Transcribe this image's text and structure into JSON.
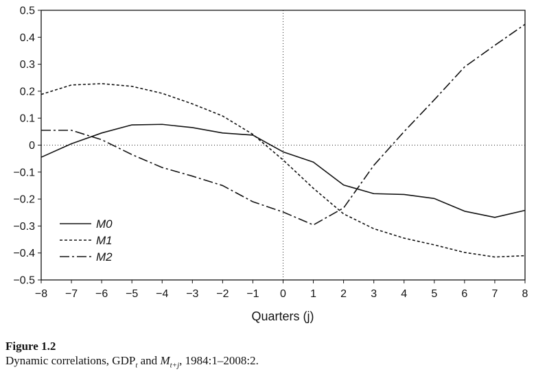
{
  "chart_data": {
    "type": "line",
    "xlabel": "Quarters (j)",
    "ylabel": "",
    "xlim": [
      -8,
      8
    ],
    "ylim": [
      -0.5,
      0.5
    ],
    "x": [
      -8,
      -7,
      -6,
      -5,
      -4,
      -3,
      -2,
      -1,
      0,
      1,
      2,
      3,
      4,
      5,
      6,
      7,
      8
    ],
    "x_tick_labels": [
      "−8",
      "−7",
      "−6",
      "−5",
      "−4",
      "−3",
      "−2",
      "−1",
      "0",
      "1",
      "2",
      "3",
      "4",
      "5",
      "6",
      "7",
      "8"
    ],
    "y_ticks": [
      -0.5,
      -0.4,
      -0.3,
      -0.2,
      -0.1,
      0,
      0.1,
      0.2,
      0.3,
      0.4,
      0.5
    ],
    "y_tick_labels": [
      "−0.5",
      "−0.4",
      "−0.3",
      "−0.2",
      "−0.1",
      "0",
      "0.1",
      "0.2",
      "0.3",
      "0.4",
      "0.5"
    ],
    "reference_lines": {
      "x": 0,
      "y": 0,
      "style": "dotted"
    },
    "legend_position": "lower-left",
    "series": [
      {
        "name": "M0",
        "style": "solid",
        "values": [
          -0.045,
          0.005,
          0.045,
          0.075,
          0.077,
          0.065,
          0.045,
          0.037,
          -0.025,
          -0.063,
          -0.148,
          -0.18,
          -0.183,
          -0.198,
          -0.245,
          -0.268,
          -0.242
        ]
      },
      {
        "name": "M1",
        "style": "dashed",
        "values": [
          0.188,
          0.223,
          0.228,
          0.218,
          0.192,
          0.153,
          0.108,
          0.04,
          -0.055,
          -0.16,
          -0.255,
          -0.31,
          -0.345,
          -0.37,
          -0.398,
          -0.415,
          -0.41
        ]
      },
      {
        "name": "M2",
        "style": "dash-dot",
        "values": [
          0.055,
          0.055,
          0.02,
          -0.035,
          -0.083,
          -0.115,
          -0.15,
          -0.21,
          -0.248,
          -0.296,
          -0.233,
          -0.075,
          0.05,
          0.168,
          0.29,
          0.37,
          0.448
        ]
      }
    ]
  },
  "caption": {
    "figure_label": "Figure 1.2",
    "text_before": "Dynamic correlations, GDP",
    "gdp_sub": "t",
    "and_text": " and ",
    "m_letter": "M",
    "m_sub": "t+j",
    "text_after": ", 1984:1–2008:2."
  }
}
